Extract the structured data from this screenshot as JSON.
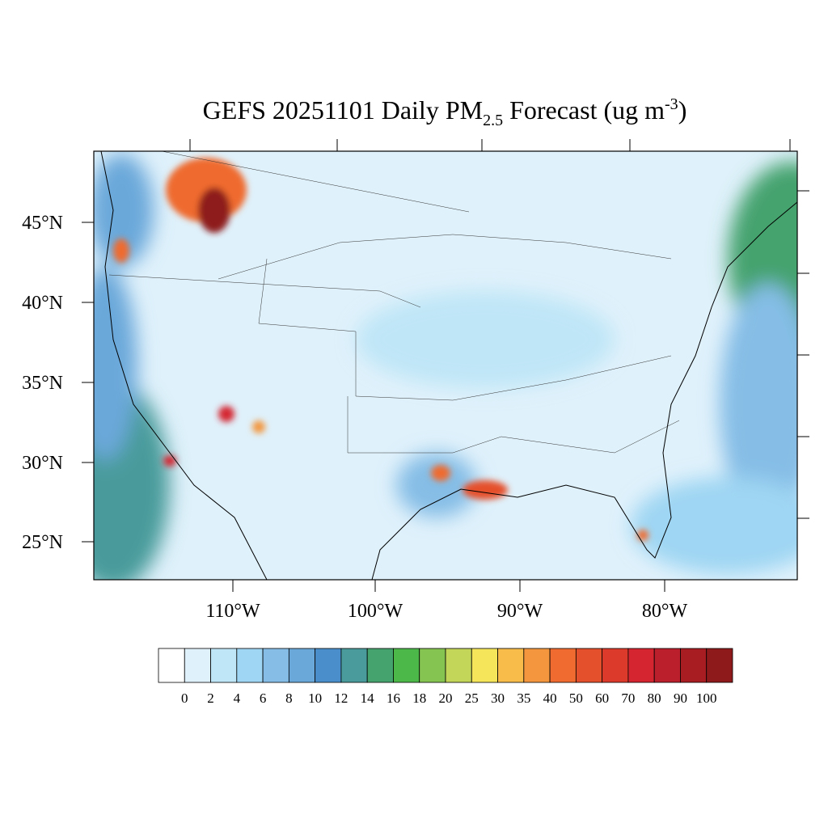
{
  "title": {
    "main": "GEFS 20251101 Daily PM",
    "sub": "2.5",
    "mid": " Forecast (ug m",
    "sup": "-3",
    "end": ")"
  },
  "map": {
    "lat_labels": [
      "45°N",
      "40°N",
      "35°N",
      "30°N",
      "25°N"
    ],
    "lon_labels": [
      "110°W",
      "100°W",
      "90°W",
      "80°W"
    ]
  },
  "colorbar": {
    "levels": [
      0,
      2,
      4,
      6,
      8,
      10,
      12,
      14,
      16,
      18,
      20,
      25,
      30,
      35,
      40,
      50,
      60,
      70,
      80,
      90,
      100
    ],
    "colors": [
      "#ffffff",
      "#dff1fb",
      "#bfe6f7",
      "#9fd6f3",
      "#85bde6",
      "#6aa8da",
      "#4a8fcc",
      "#4a9b9b",
      "#45a36e",
      "#4db84a",
      "#86c452",
      "#c3d65a",
      "#f4e55a",
      "#f7bc4a",
      "#f3963d",
      "#ef6b2f",
      "#e5502c",
      "#dc3a2a",
      "#d42530",
      "#ba1f2b",
      "#a81d22",
      "#8e1a1b"
    ]
  }
}
